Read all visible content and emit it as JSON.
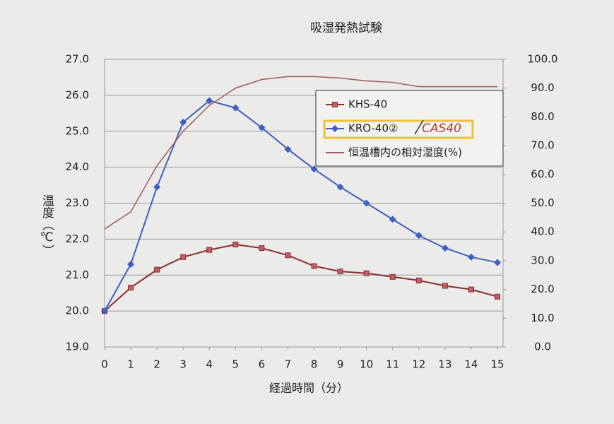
{
  "chart_data": {
    "type": "line",
    "title": "吸湿発熱試験",
    "x_label": "経過時間（分）",
    "y_label": "温度（℃）",
    "annotation": "CAS40",
    "x": [
      0,
      1,
      2,
      3,
      4,
      5,
      6,
      7,
      8,
      9,
      10,
      11,
      12,
      13,
      14,
      15
    ],
    "xlim": [
      0,
      15
    ],
    "xticks": [
      0,
      1,
      2,
      3,
      4,
      5,
      6,
      7,
      8,
      9,
      10,
      11,
      12,
      13,
      14,
      15
    ],
    "ylim": [
      19,
      27
    ],
    "yticks": [
      {
        "value": 19,
        "label": "19.0"
      },
      {
        "value": 20,
        "label": "20.0"
      },
      {
        "value": 21,
        "label": "21.0"
      },
      {
        "value": 22,
        "label": "22.0"
      },
      {
        "value": 23,
        "label": "23.0"
      },
      {
        "value": 24,
        "label": "24.0"
      },
      {
        "value": 25,
        "label": "25.0"
      },
      {
        "value": 26,
        "label": "26.0"
      },
      {
        "value": 27,
        "label": "27.0"
      }
    ],
    "y2lim": [
      0,
      100
    ],
    "y2ticks": [
      {
        "value": 0,
        "label": "0.0"
      },
      {
        "value": 10,
        "label": "10.0"
      },
      {
        "value": 20,
        "label": "20.0"
      },
      {
        "value": 30,
        "label": "30.0"
      },
      {
        "value": 40,
        "label": "40.0"
      },
      {
        "value": 50,
        "label": "50.0"
      },
      {
        "value": 60,
        "label": "60.0"
      },
      {
        "value": 70,
        "label": "70.0"
      },
      {
        "value": 80,
        "label": "80.0"
      },
      {
        "value": 90,
        "label": "90.0"
      },
      {
        "value": 100,
        "label": "100.0"
      }
    ],
    "grid": true,
    "legend": "upper right",
    "series": [
      {
        "name": "KHS-40",
        "color": "#8b2e2e",
        "marker": "square",
        "values": [
          20.0,
          20.65,
          21.15,
          21.5,
          21.7,
          21.85,
          21.75,
          21.55,
          21.25,
          21.1,
          21.05,
          20.95,
          20.85,
          20.7,
          20.6,
          20.4
        ]
      },
      {
        "name": "KRO-40②",
        "color": "#3d5fc4",
        "marker": "diamond",
        "values": [
          20.0,
          21.3,
          23.45,
          25.25,
          25.85,
          25.65,
          25.1,
          24.5,
          23.95,
          23.45,
          23.0,
          22.55,
          22.1,
          21.75,
          21.5,
          21.35
        ]
      },
      {
        "name": "恒温槽内の相対湿度(%)",
        "color": "#a05a5a",
        "axis": "y2",
        "values": [
          41,
          47,
          63,
          75,
          84,
          90,
          93,
          94,
          94,
          93.5,
          92.5,
          92,
          90.5,
          90.5,
          90.5,
          90.5
        ]
      }
    ]
  }
}
